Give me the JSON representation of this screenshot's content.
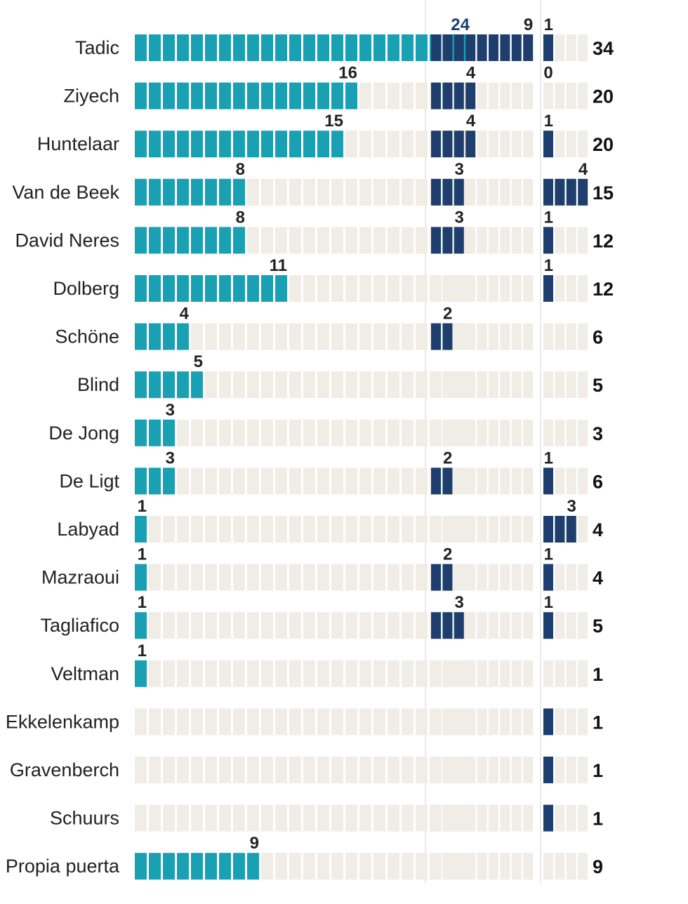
{
  "chart_data": {
    "type": "bar",
    "colors": {
      "cell_empty": "#f0ede6",
      "series_1": "#1aa0b3",
      "series_2": "#1e3f6e",
      "series_3": "#1e3f6e"
    },
    "categories": [
      "Tadic",
      "Ziyech",
      "Huntelaar",
      "Van de Beek",
      "David Neres",
      "Dolberg",
      "Schöne",
      "Blind",
      "De Jong",
      "De Ligt",
      "Labyad",
      "Mazraoui",
      "Tagliafico",
      "Veltman",
      "Ekkelenkamp",
      "Gravenberch",
      "Schuurs",
      "Propia puerta"
    ],
    "series": [
      {
        "values": [
          24,
          16,
          15,
          8,
          8,
          11,
          4,
          5,
          3,
          3,
          1,
          1,
          1,
          1,
          0,
          0,
          0,
          9
        ],
        "labels": [
          "24",
          "16",
          "15",
          "8",
          "8",
          "11",
          "4",
          "5",
          "3",
          "3",
          "1",
          "1",
          "1",
          "1",
          "",
          "",
          "",
          "9"
        ]
      },
      {
        "values": [
          9,
          4,
          4,
          3,
          3,
          0,
          2,
          0,
          0,
          2,
          0,
          2,
          3,
          0,
          0,
          0,
          0,
          0
        ],
        "labels": [
          "9",
          "4",
          "4",
          "3",
          "3",
          "",
          "2",
          "",
          "",
          "2",
          "",
          "2",
          "3",
          "",
          "",
          "",
          "",
          ""
        ]
      },
      {
        "values": [
          1,
          0,
          1,
          4,
          1,
          1,
          0,
          0,
          0,
          1,
          3,
          1,
          1,
          0,
          1,
          1,
          1,
          0
        ],
        "labels": [
          "1",
          "0",
          "1",
          "4",
          "1",
          "1",
          "",
          "",
          "",
          "1",
          "3",
          "1",
          "1",
          "",
          "",
          "",
          "",
          ""
        ]
      }
    ],
    "totals": [
      "34",
      "20",
      "20",
      "15",
      "12",
      "12",
      "6",
      "5",
      "3",
      "6",
      "4",
      "4",
      "5",
      "1",
      "1",
      "1",
      "1",
      "9"
    ]
  }
}
